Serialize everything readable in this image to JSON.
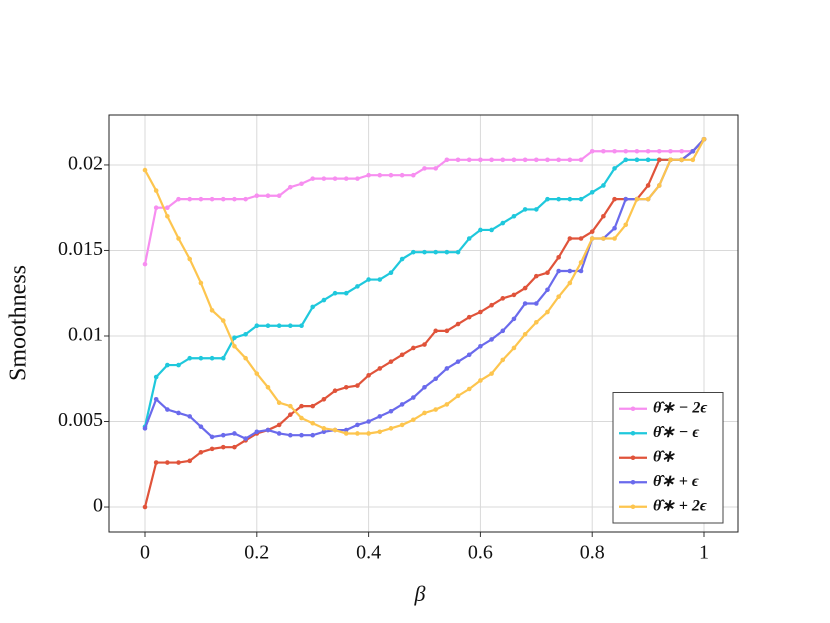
{
  "chart_data": {
    "type": "line",
    "x_label": "β",
    "y_label": "Smoothness",
    "x": [
      0,
      0.02,
      0.04,
      0.06,
      0.08,
      0.1,
      0.12,
      0.14,
      0.16,
      0.18,
      0.2,
      0.22,
      0.24,
      0.26,
      0.28,
      0.3,
      0.32,
      0.34,
      0.36,
      0.38,
      0.4,
      0.42,
      0.44,
      0.46,
      0.48,
      0.5,
      0.52,
      0.54,
      0.56,
      0.58,
      0.6,
      0.62,
      0.64,
      0.66,
      0.68,
      0.7,
      0.72,
      0.74,
      0.76,
      0.78,
      0.8,
      0.82,
      0.84,
      0.86,
      0.88,
      0.9,
      0.92,
      0.94,
      0.96,
      0.98,
      1
    ],
    "xlim": [
      -0.0644,
      1.0608
    ],
    "xticks": [
      0,
      0.2,
      0.4,
      0.6,
      0.8,
      1
    ],
    "ylim": [
      -0.00146,
      0.02292
    ],
    "yticks": [
      0,
      0.005,
      0.01,
      0.015,
      0.02
    ],
    "grid": true,
    "legend": "lower right",
    "series": [
      {
        "name": "θ̂∗ − 2ϵ",
        "color": "#f78ef0",
        "values": [
          0.0142,
          0.0175,
          0.0175,
          0.018,
          0.018,
          0.018,
          0.018,
          0.018,
          0.018,
          0.018,
          0.0182,
          0.0182,
          0.0182,
          0.0187,
          0.0189,
          0.0192,
          0.0192,
          0.0192,
          0.0192,
          0.0192,
          0.0194,
          0.0194,
          0.0194,
          0.0194,
          0.0194,
          0.0198,
          0.0198,
          0.0203,
          0.0203,
          0.0203,
          0.0203,
          0.0203,
          0.0203,
          0.0203,
          0.0203,
          0.0203,
          0.0203,
          0.0203,
          0.0203,
          0.0203,
          0.0208,
          0.0208,
          0.0208,
          0.0208,
          0.0208,
          0.0208,
          0.0208,
          0.0208,
          0.0208,
          0.0208,
          0.0215
        ]
      },
      {
        "name": "θ̂∗ − ϵ",
        "color": "#1fc8dc",
        "values": [
          0.0047,
          0.0076,
          0.0083,
          0.0083,
          0.0087,
          0.0087,
          0.0087,
          0.0087,
          0.0099,
          0.0101,
          0.0106,
          0.0106,
          0.0106,
          0.0106,
          0.0106,
          0.0117,
          0.0121,
          0.0125,
          0.0125,
          0.0129,
          0.0133,
          0.0133,
          0.0137,
          0.0145,
          0.0149,
          0.0149,
          0.0149,
          0.0149,
          0.0149,
          0.0157,
          0.0162,
          0.0162,
          0.0166,
          0.017,
          0.0174,
          0.0174,
          0.018,
          0.018,
          0.018,
          0.018,
          0.0184,
          0.0188,
          0.0198,
          0.0203,
          0.0203,
          0.0203,
          0.0203,
          0.0203,
          0.0203,
          0.0208,
          0.0215
        ]
      },
      {
        "name": "θ̂∗",
        "color": "#e0533a",
        "values": [
          0,
          0.0026,
          0.0026,
          0.0026,
          0.0027,
          0.0032,
          0.0034,
          0.0035,
          0.0035,
          0.0039,
          0.0043,
          0.0045,
          0.0048,
          0.0054,
          0.0059,
          0.0059,
          0.0063,
          0.0068,
          0.007,
          0.0071,
          0.0077,
          0.0081,
          0.0085,
          0.0089,
          0.0093,
          0.0095,
          0.0103,
          0.0103,
          0.0107,
          0.0111,
          0.0114,
          0.0118,
          0.0122,
          0.0124,
          0.0128,
          0.0135,
          0.0137,
          0.0146,
          0.0157,
          0.0157,
          0.0161,
          0.017,
          0.018,
          0.018,
          0.018,
          0.0188,
          0.0203,
          0.0203,
          0.0203,
          0.0208,
          0.0215
        ]
      },
      {
        "name": "θ̂∗ + ϵ",
        "color": "#6a6aec",
        "values": [
          0.0046,
          0.0063,
          0.0057,
          0.0055,
          0.0053,
          0.0047,
          0.0041,
          0.0042,
          0.0043,
          0.004,
          0.0044,
          0.0045,
          0.0043,
          0.0042,
          0.0042,
          0.0042,
          0.0044,
          0.0045,
          0.0045,
          0.0048,
          0.005,
          0.0053,
          0.0056,
          0.006,
          0.0064,
          0.007,
          0.0075,
          0.0081,
          0.0085,
          0.0089,
          0.0094,
          0.0098,
          0.0103,
          0.011,
          0.0119,
          0.0119,
          0.0127,
          0.0138,
          0.0138,
          0.0138,
          0.0157,
          0.0157,
          0.0163,
          0.018,
          0.018,
          0.018,
          0.0188,
          0.0203,
          0.0203,
          0.0208,
          0.0215
        ]
      },
      {
        "name": "θ̂∗ + 2ϵ",
        "color": "#fdc54e",
        "values": [
          0.0197,
          0.0185,
          0.017,
          0.0157,
          0.0145,
          0.0131,
          0.0115,
          0.0109,
          0.0094,
          0.0087,
          0.0078,
          0.007,
          0.0061,
          0.0059,
          0.0052,
          0.0049,
          0.0046,
          0.0045,
          0.0043,
          0.0043,
          0.0043,
          0.0044,
          0.0046,
          0.0048,
          0.0051,
          0.0055,
          0.0057,
          0.006,
          0.0065,
          0.0069,
          0.0074,
          0.0078,
          0.0086,
          0.0093,
          0.0101,
          0.0108,
          0.0114,
          0.0123,
          0.0131,
          0.0143,
          0.0157,
          0.0157,
          0.0157,
          0.0165,
          0.018,
          0.018,
          0.0188,
          0.0203,
          0.0203,
          0.0203,
          0.0215
        ]
      }
    ]
  }
}
